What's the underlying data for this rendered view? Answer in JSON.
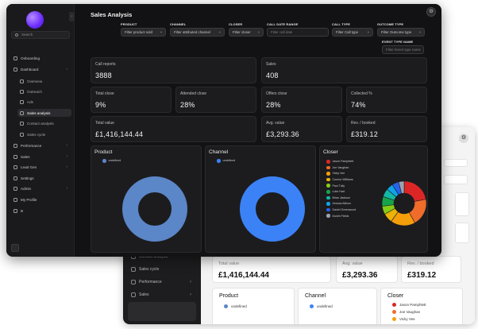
{
  "app": {
    "page_title": "Sales Analysis",
    "search_placeholder": "Search"
  },
  "sidebar": {
    "items": [
      {
        "label": "Onboarding",
        "sub": false,
        "chevron": false
      },
      {
        "label": "Dashboard",
        "sub": false,
        "chevron": true
      },
      {
        "label": "Overview",
        "sub": true
      },
      {
        "label": "Outreach",
        "sub": true
      },
      {
        "label": "Ads",
        "sub": true
      },
      {
        "label": "Sales analysis",
        "sub": true,
        "active": true
      },
      {
        "label": "Contact analysis",
        "sub": true
      },
      {
        "label": "Sales cycle",
        "sub": true
      },
      {
        "label": "Performance",
        "sub": false,
        "chevron": true
      },
      {
        "label": "Sales",
        "sub": false,
        "chevron": true
      },
      {
        "label": "Lead Gen",
        "sub": false,
        "chevron": true
      },
      {
        "label": "Settings",
        "sub": false
      },
      {
        "label": "Admin",
        "sub": false,
        "chevron": true
      },
      {
        "label": "My Profile",
        "sub": false
      },
      {
        "label": "B",
        "sub": false
      }
    ]
  },
  "filters": [
    {
      "label": "PRODUCT",
      "value": "Filter product sold",
      "kind": "select"
    },
    {
      "label": "CHANNEL",
      "value": "Filter attributed channel",
      "kind": "select"
    },
    {
      "label": "CLOSER",
      "value": "Filter closer",
      "kind": "select"
    },
    {
      "label": "CALL DATE RANGE",
      "value": "Filter call date",
      "kind": "input"
    },
    {
      "label": "CALL TYPE",
      "value": "Filter Call type",
      "kind": "select"
    },
    {
      "label": "OUTCOME TYPE",
      "value": "Filter Outcome type",
      "kind": "select"
    },
    {
      "label": "EVENT TYPE NAME",
      "value": "Filter Event type name",
      "kind": "input"
    }
  ],
  "stats": {
    "call_reports": {
      "label": "Call reports",
      "value": "3888"
    },
    "sales": {
      "label": "Sales",
      "value": "408"
    },
    "total_close": {
      "label": "Total close",
      "value": "9%"
    },
    "attended_close": {
      "label": "Attended close",
      "value": "28%"
    },
    "offers_close": {
      "label": "Offers close",
      "value": "28%"
    },
    "collected": {
      "label": "Collected %",
      "value": "74%"
    },
    "total_value": {
      "label": "Total value",
      "value": "£1,416,144.44"
    },
    "avg_value": {
      "label": "Avg. value",
      "value": "£3,293.36"
    },
    "rev_booked": {
      "label": "Rev. / booked",
      "value": "£319.12"
    }
  },
  "charts": {
    "product": {
      "title": "Product",
      "legend": "undefined",
      "color": "#5b86c7"
    },
    "channel": {
      "title": "Channel",
      "legend": "undefined",
      "color": "#3b82f6"
    },
    "closer": {
      "title": "Closer",
      "people": [
        {
          "name": "Jason Pamphlett",
          "color": "#dc2626"
        },
        {
          "name": "Joe Vaughan",
          "color": "#ef6c2a"
        },
        {
          "name": "Vicky Vee",
          "color": "#f59e0b"
        },
        {
          "name": "Connor Williams",
          "color": "#eab308"
        },
        {
          "name": "Paul Tully",
          "color": "#84cc16"
        },
        {
          "name": "Luke Hart",
          "color": "#16a34a"
        },
        {
          "name": "Brian Jackson",
          "color": "#14b8a6"
        },
        {
          "name": "Jessica Allison",
          "color": "#0ea5e9"
        },
        {
          "name": "Daniel Greenwood",
          "color": "#2563eb"
        },
        {
          "name": "Dustin Fields",
          "color": "#9ca3af"
        }
      ],
      "shares": [
        0.22,
        0.2,
        0.18,
        0.07,
        0.06,
        0.07,
        0.06,
        0.05,
        0.05,
        0.04
      ]
    }
  },
  "back_window": {
    "nav": [
      "Contact analysis",
      "Sales cycle",
      "Performance",
      "Sales"
    ],
    "stats": [
      {
        "label": "Total value",
        "value": "£1,416,144.44"
      },
      {
        "label": "Avg. value",
        "value": "£3,293.36"
      },
      {
        "label": "Rev. / booked",
        "value": "£319.12"
      }
    ],
    "charts": {
      "product": {
        "title": "Product",
        "legend": "undefined"
      },
      "channel": {
        "title": "Channel",
        "legend": "undefined"
      },
      "closer": {
        "title": "Closer",
        "people": [
          "Jason Pamphlett",
          "Joe Vaughan",
          "Vicky Vee"
        ]
      }
    }
  }
}
